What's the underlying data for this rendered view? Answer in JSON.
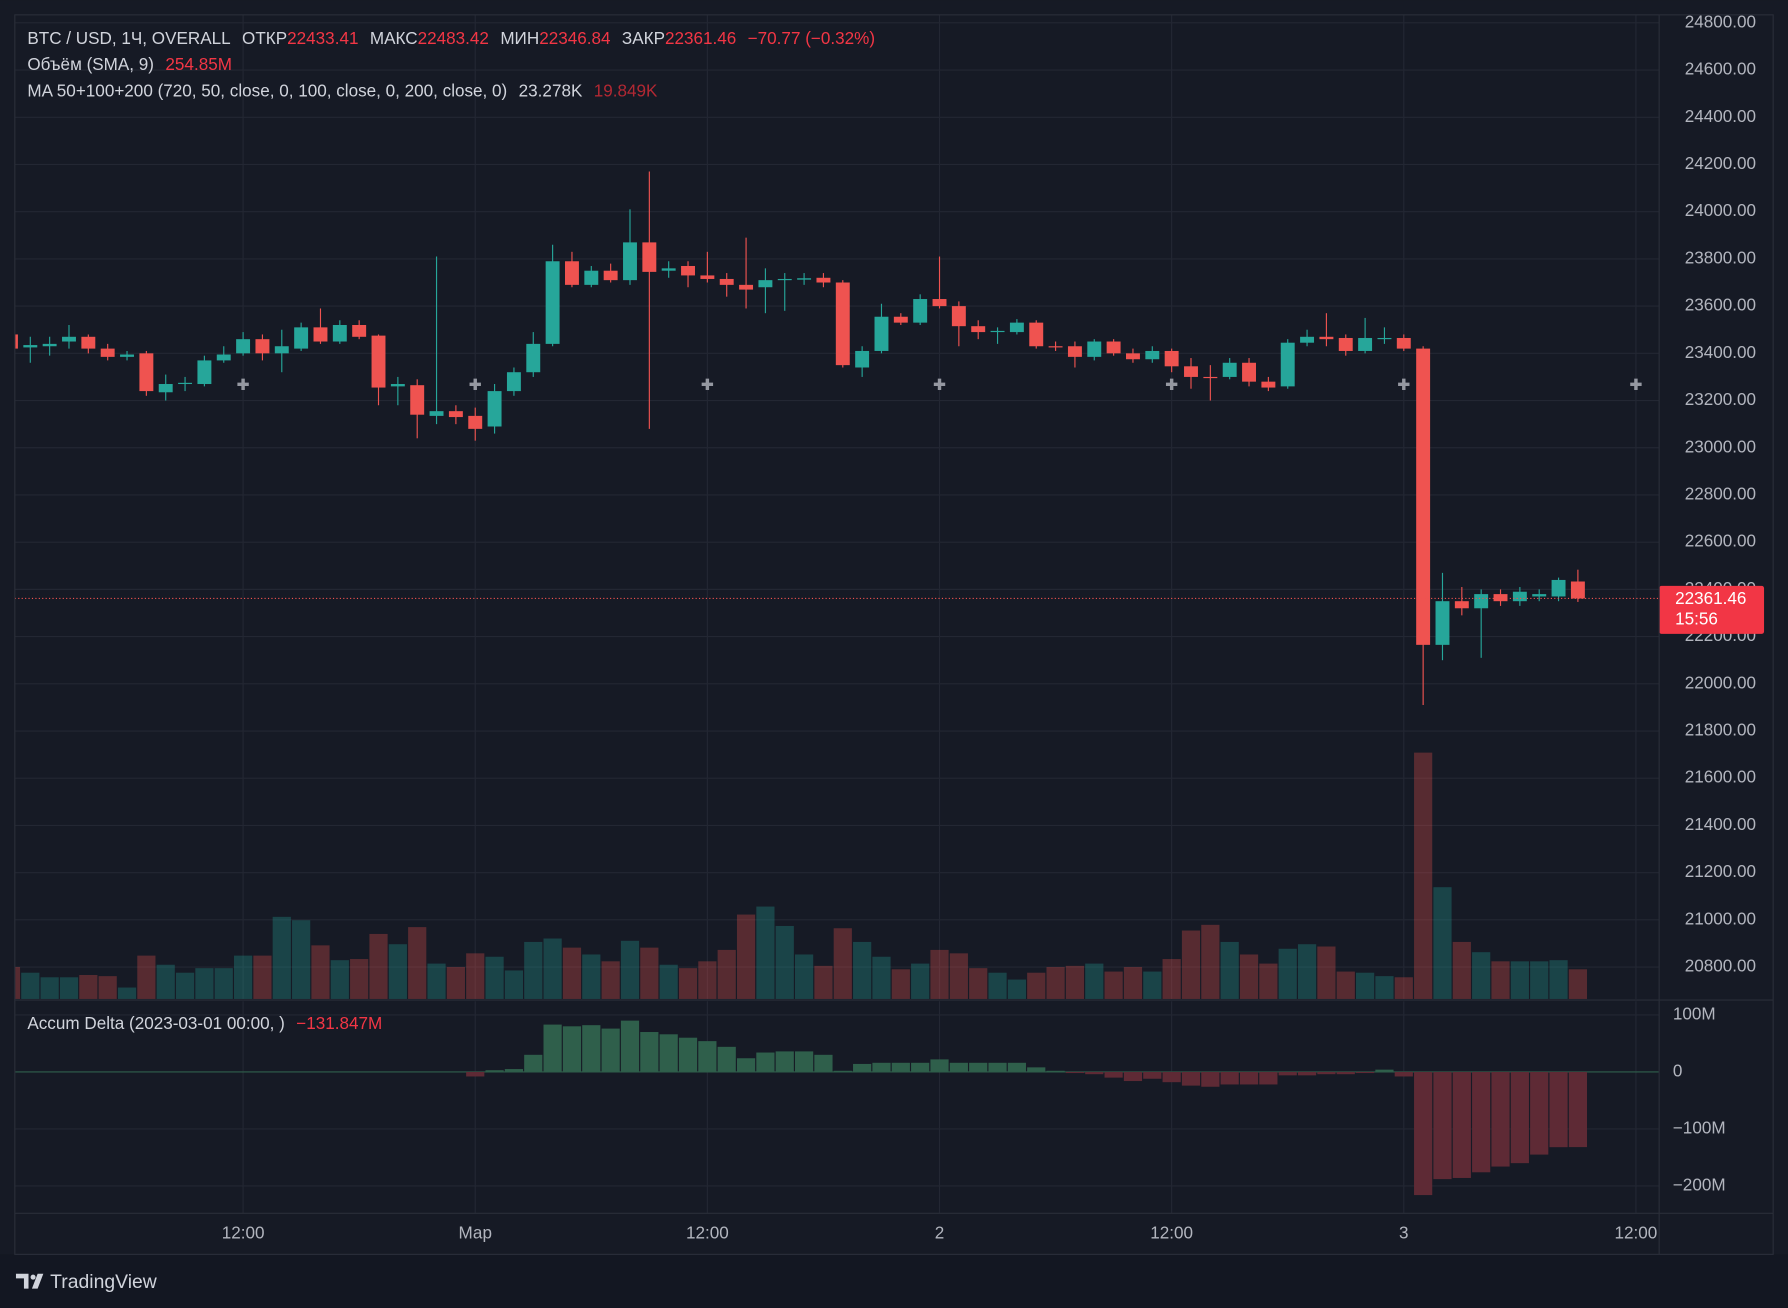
{
  "chart_data": [
    {
      "type": "candlestick",
      "title": "BTC / USD, 1Ч, OVERALL",
      "ohlc_labels": [
        "ОТКР",
        "МАКС",
        "МИН",
        "ЗАКР"
      ],
      "change_label": "−70.77 (−0.32%)",
      "countdown": "15:56",
      "up_color": "#26a69a",
      "down_color": "#ef5350",
      "open": [
        23480,
        23425,
        23430,
        23450,
        23470,
        23420,
        23385,
        23400,
        23235,
        23270,
        23270,
        23370,
        23400,
        23460,
        23400,
        23420,
        23510,
        23450,
        23520,
        23475,
        23260,
        23265,
        23135,
        23155,
        23135,
        23090,
        23240,
        23320,
        23440,
        23790,
        23690,
        23750,
        23710,
        23870,
        23750,
        23770,
        23730,
        23715,
        23690,
        23680,
        23710,
        23712,
        23720,
        23700,
        23340,
        23410,
        23555,
        23530,
        23630,
        23600,
        23515,
        23490,
        23490,
        23530,
        23430,
        23430,
        23385,
        23450,
        23400,
        23375,
        23410,
        23345,
        23300,
        23300,
        23360,
        23280,
        23260,
        23445,
        23470,
        23465,
        23410,
        23460,
        23465,
        23420,
        22165,
        22350,
        22320,
        22380,
        22350,
        22370,
        22370,
        22433.41
      ],
      "high": [
        23500,
        23470,
        23470,
        23520,
        23480,
        23440,
        23410,
        23410,
        23310,
        23300,
        23390,
        23430,
        23490,
        23480,
        23500,
        23530,
        23590,
        23540,
        23540,
        23480,
        23300,
        23290,
        23810,
        23180,
        23170,
        23270,
        23340,
        23490,
        23860,
        23830,
        23770,
        23780,
        24010,
        24170,
        23790,
        23790,
        23830,
        23740,
        23890,
        23760,
        23740,
        23740,
        23740,
        23710,
        23430,
        23610,
        23570,
        23650,
        23810,
        23620,
        23540,
        23510,
        23545,
        23540,
        23450,
        23450,
        23460,
        23460,
        23420,
        23430,
        23420,
        23380,
        23350,
        23380,
        23380,
        23300,
        23460,
        23500,
        23570,
        23480,
        23550,
        23510,
        23480,
        23430,
        22470,
        22410,
        22400,
        22400,
        22410,
        22400,
        22450,
        22483.42
      ],
      "low": [
        23400,
        23360,
        23390,
        23420,
        23400,
        23370,
        23370,
        23220,
        23200,
        23240,
        23260,
        23360,
        23390,
        23370,
        23320,
        23410,
        23440,
        23440,
        23460,
        23180,
        23180,
        23040,
        23100,
        23100,
        23030,
        23060,
        23220,
        23300,
        23430,
        23680,
        23680,
        23700,
        23690,
        23080,
        23720,
        23680,
        23700,
        23640,
        23590,
        23570,
        23580,
        23690,
        23680,
        23340,
        23300,
        23400,
        23520,
        23520,
        23590,
        23430,
        23460,
        23440,
        23480,
        23420,
        23410,
        23340,
        23370,
        23390,
        23360,
        23360,
        23320,
        23250,
        23200,
        23290,
        23260,
        23240,
        23250,
        23430,
        23430,
        23390,
        23400,
        23440,
        23410,
        21910,
        22100,
        22290,
        22110,
        22330,
        22330,
        22350,
        22350,
        22346.84
      ],
      "close": [
        23420,
        23435,
        23440,
        23470,
        23420,
        23385,
        23395,
        23240,
        23270,
        23275,
        23370,
        23395,
        23460,
        23400,
        23430,
        23510,
        23450,
        23520,
        23470,
        23255,
        23270,
        23140,
        23155,
        23130,
        23080,
        23240,
        23320,
        23440,
        23790,
        23690,
        23750,
        23710,
        23870,
        23745,
        23760,
        23730,
        23715,
        23690,
        23670,
        23710,
        23715,
        23718,
        23700,
        23350,
        23410,
        23555,
        23530,
        23630,
        23600,
        23515,
        23490,
        23495,
        23530,
        23430,
        23425,
        23385,
        23450,
        23400,
        23375,
        23410,
        23345,
        23300,
        23295,
        23360,
        23280,
        23255,
        23445,
        23470,
        23460,
        23410,
        23465,
        23465,
        23420,
        22165,
        22350,
        22320,
        22380,
        22350,
        22390,
        22380,
        22440,
        22361.46
      ],
      "volume": {
        "title": "Объём (SMA, 9)",
        "sma_label": "254.85M",
        "values": [
          140,
          115,
          95,
          95,
          105,
          100,
          50,
          190,
          150,
          115,
          135,
          135,
          190,
          190,
          360,
          345,
          235,
          170,
          175,
          285,
          240,
          315,
          155,
          140,
          200,
          185,
          125,
          250,
          265,
          225,
          195,
          165,
          255,
          225,
          150,
          135,
          165,
          215,
          370,
          405,
          320,
          195,
          145,
          310,
          250,
          185,
          130,
          155,
          215,
          200,
          135,
          115,
          85,
          115,
          140,
          145,
          155,
          120,
          140,
          120,
          175,
          300,
          325,
          250,
          195,
          155,
          220,
          240,
          230,
          120,
          115,
          100,
          95,
          1080,
          490,
          250,
          205,
          165,
          165,
          165,
          170,
          130
        ]
      },
      "ma": {
        "title": "MA 50+100+200 (720, 50, close, 0, 100, close, 0, 200, close, 0)",
        "labels": [
          "23.278K",
          "19.849K"
        ]
      },
      "xlim": [
        0.2,
        85.2
      ],
      "xticks": [
        {
          "value": 12,
          "label": "12:00"
        },
        {
          "value": 24,
          "label": "Мар"
        },
        {
          "value": 36,
          "label": "12:00"
        },
        {
          "value": 48,
          "label": "2"
        },
        {
          "value": 60,
          "label": "12:00"
        },
        {
          "value": 72,
          "label": "3"
        },
        {
          "value": 84,
          "label": "12:00"
        }
      ],
      "ylim": [
        20665,
        24829
      ],
      "yticks": [
        {
          "value": 20800,
          "label": "20800.00"
        },
        {
          "value": 21000,
          "label": "21000.00"
        },
        {
          "value": 21200,
          "label": "21200.00"
        },
        {
          "value": 21400,
          "label": "21400.00"
        },
        {
          "value": 21600,
          "label": "21600.00"
        },
        {
          "value": 21800,
          "label": "21800.00"
        },
        {
          "value": 22000,
          "label": "22000.00"
        },
        {
          "value": 22200,
          "label": "22200.00"
        },
        {
          "value": 22400,
          "label": "22400.00"
        },
        {
          "value": 22600,
          "label": "22600.00"
        },
        {
          "value": 22800,
          "label": "22800.00"
        },
        {
          "value": 23000,
          "label": "23000.00"
        },
        {
          "value": 23200,
          "label": "23200.00"
        },
        {
          "value": 23400,
          "label": "23400.00"
        },
        {
          "value": 23600,
          "label": "23600.00"
        },
        {
          "value": 23800,
          "label": "23800.00"
        },
        {
          "value": 24000,
          "label": "24000.00"
        },
        {
          "value": 24200,
          "label": "24200.00"
        },
        {
          "value": 24400,
          "label": "24400.00"
        },
        {
          "value": 24600,
          "label": "24600.00"
        },
        {
          "value": 24800,
          "label": "24800.00"
        }
      ],
      "grid": true
    },
    {
      "type": "bar",
      "title": "Accum Delta (2023-03-01 00:00, )",
      "value_label": "−131.847M",
      "up_color": "#2f5f4b",
      "down_color": "#5e2a35",
      "values": [
        null,
        null,
        null,
        null,
        null,
        null,
        null,
        null,
        null,
        null,
        null,
        null,
        null,
        null,
        null,
        null,
        null,
        null,
        null,
        null,
        null,
        null,
        null,
        null,
        -8,
        3,
        5,
        30,
        83,
        80,
        82,
        76,
        90,
        70,
        66,
        60,
        54,
        44,
        24,
        34,
        36,
        36,
        30,
        2,
        14,
        16,
        16,
        16,
        22,
        16,
        16,
        16,
        16,
        8,
        2,
        -2,
        -4,
        -10,
        -16,
        -12,
        -18,
        -24,
        -26,
        -22,
        -22,
        -22,
        -6,
        -6,
        -4,
        -4,
        -2,
        4,
        -8,
        -216,
        -188,
        -186,
        -176,
        -166,
        -160,
        -145,
        -132,
        -131.847
      ],
      "ylim": [
        -248,
        124
      ],
      "yticks": [
        {
          "value": 100,
          "label": "100M"
        },
        0,
        {
          "value": -100,
          "label": "−100M"
        },
        {
          "value": -200,
          "label": "−200M"
        }
      ],
      "grid": true
    }
  ],
  "footer": {
    "brand": "TradingView"
  }
}
